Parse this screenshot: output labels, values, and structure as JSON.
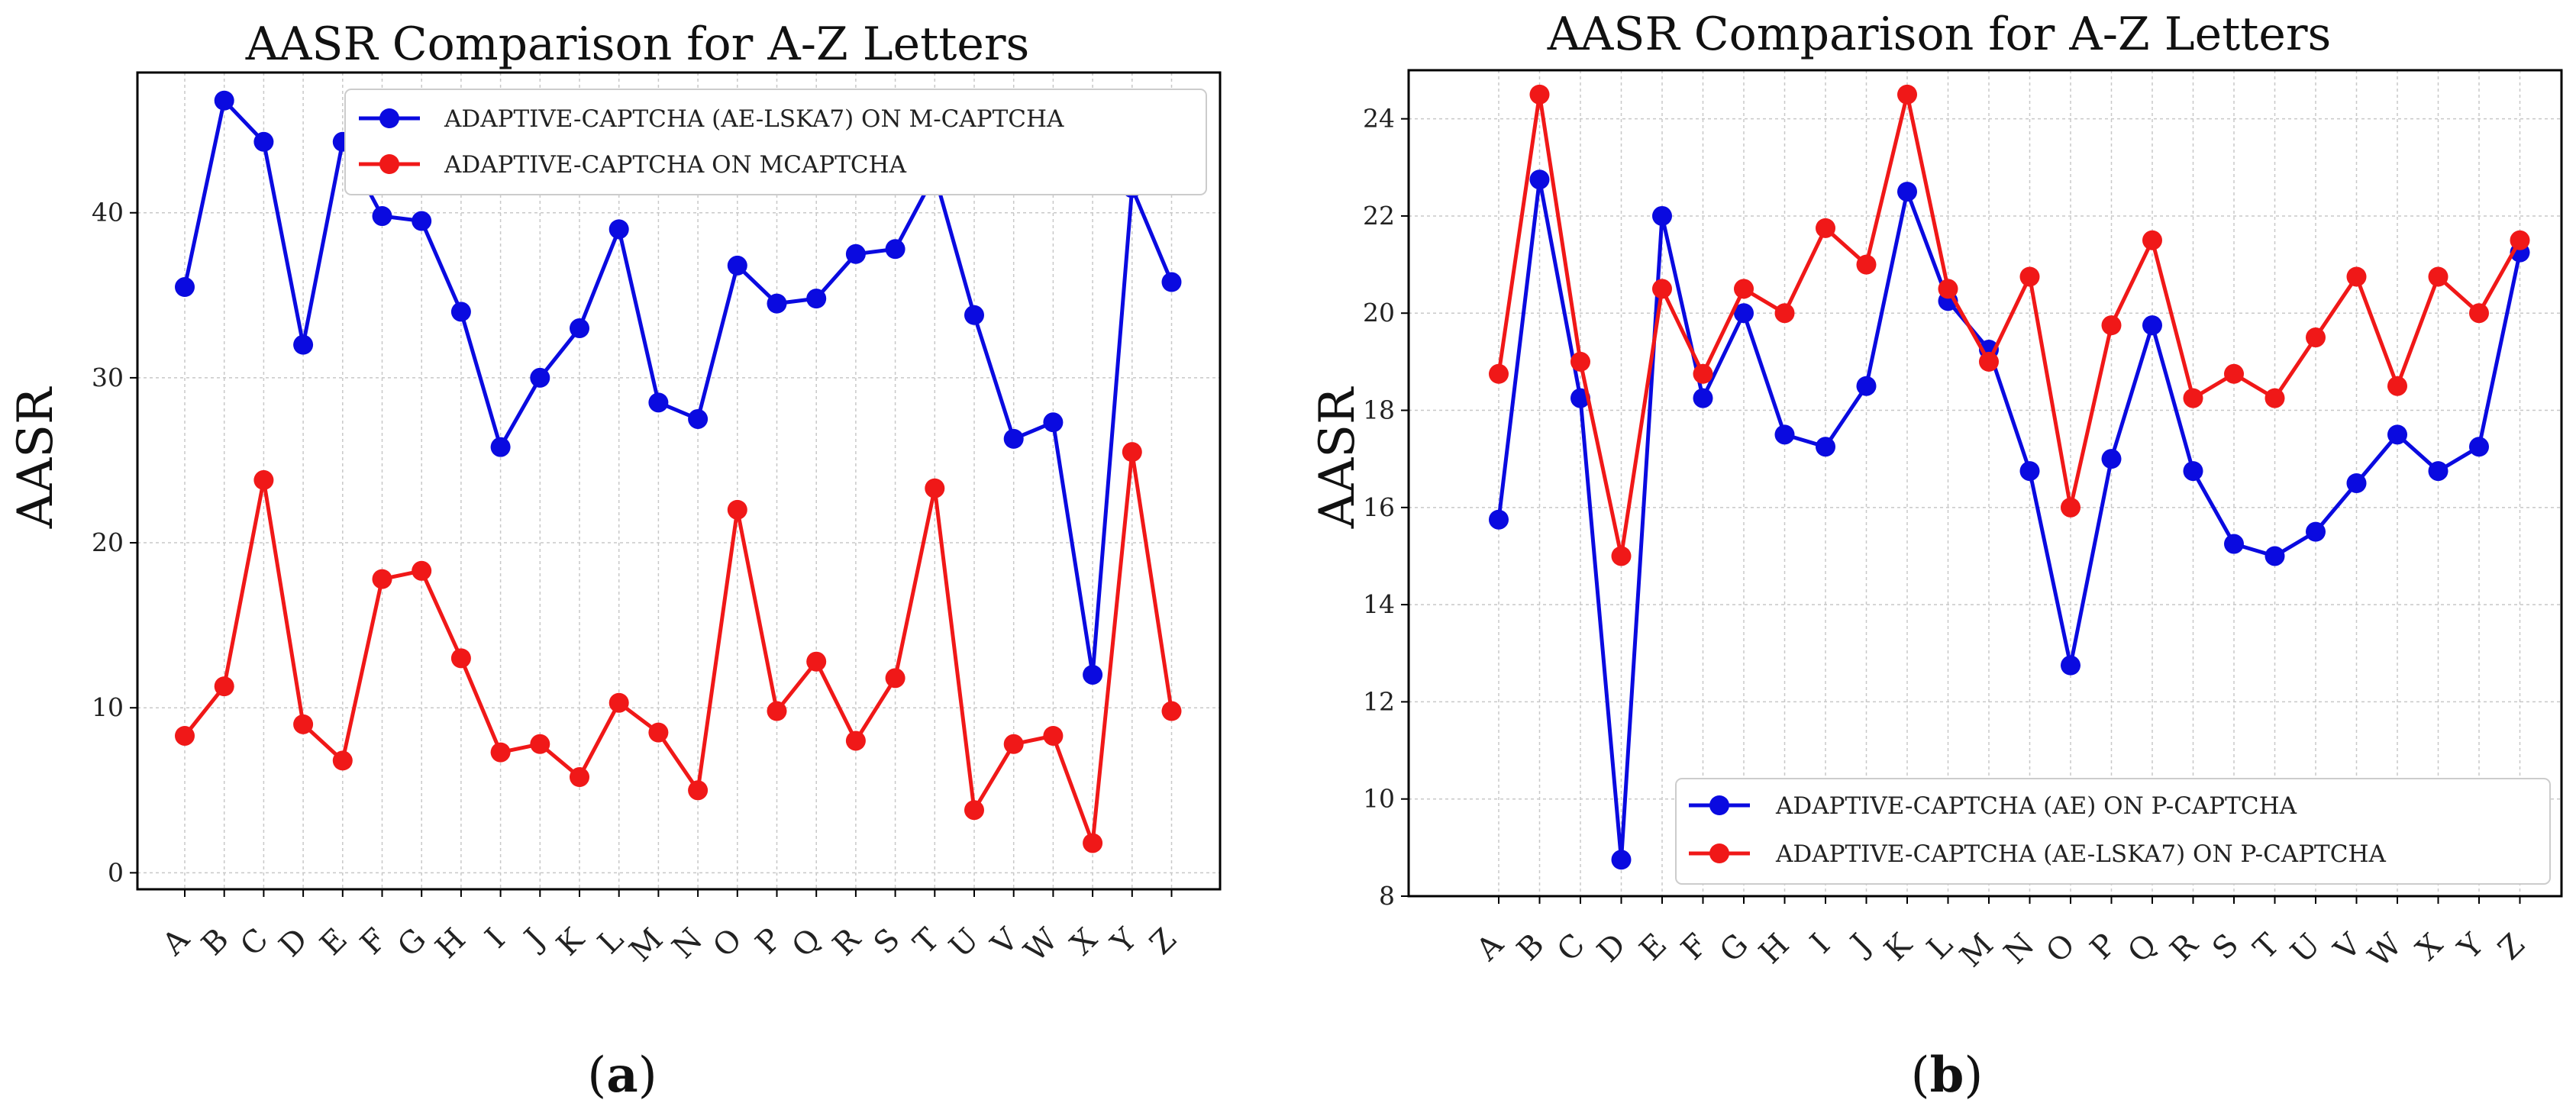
{
  "chart_data": [
    {
      "type": "line",
      "title": "AASR Comparison for A-Z Letters",
      "xlabel": "",
      "ylabel": "AASR",
      "categories": [
        "A",
        "B",
        "C",
        "D",
        "E",
        "F",
        "G",
        "H",
        "I",
        "J",
        "K",
        "L",
        "M",
        "N",
        "O",
        "P",
        "Q",
        "R",
        "S",
        "T",
        "U",
        "V",
        "W",
        "X",
        "Y",
        "Z"
      ],
      "ylim": [
        -1,
        48.5
      ],
      "yticks": [
        0,
        10,
        20,
        30,
        40
      ],
      "grid": true,
      "legend_position": "top-right",
      "caption": {
        "open": "(",
        "letter": "a",
        "close": ")"
      },
      "series": [
        {
          "name": "ADAPTIVE-CAPTCHA (AE-LSKA7) ON M-CAPTCHA",
          "color": "#0a0ae0",
          "values": [
            35.5,
            46.8,
            44.3,
            32.0,
            44.3,
            39.8,
            39.5,
            34.0,
            25.8,
            30.0,
            33.0,
            39.0,
            28.5,
            27.5,
            36.8,
            34.5,
            34.8,
            37.5,
            37.8,
            42.3,
            33.8,
            26.3,
            27.3,
            12.0,
            41.5,
            35.8
          ]
        },
        {
          "name": "ADAPTIVE-CAPTCHA ON MCAPTCHA",
          "color": "#f01818",
          "values": [
            8.3,
            11.3,
            23.8,
            9.0,
            6.8,
            17.8,
            18.3,
            13.0,
            7.3,
            7.8,
            5.8,
            10.3,
            8.5,
            5.0,
            22.0,
            9.8,
            12.8,
            8.0,
            11.8,
            23.3,
            3.8,
            7.8,
            8.3,
            1.8,
            25.5,
            9.8
          ]
        }
      ]
    },
    {
      "type": "line",
      "title": "AASR Comparison for A-Z Letters",
      "xlabel": "",
      "ylabel": "AASR",
      "categories": [
        "A",
        "B",
        "C",
        "D",
        "E",
        "F",
        "G",
        "H",
        "I",
        "J",
        "K",
        "L",
        "M",
        "N",
        "O",
        "P",
        "Q",
        "R",
        "S",
        "T",
        "U",
        "V",
        "W",
        "X",
        "Y",
        "Z"
      ],
      "ylim": [
        8,
        25
      ],
      "yticks": [
        8,
        10,
        12,
        14,
        16,
        18,
        20,
        22,
        24
      ],
      "grid": true,
      "legend_position": "lower-right",
      "caption": {
        "open": "(",
        "letter": "b",
        "close": ")"
      },
      "series": [
        {
          "name": "ADAPTIVE-CAPTCHA (AE) ON P-CAPTCHA",
          "color": "#0a0ae0",
          "values": [
            15.75,
            22.75,
            18.25,
            8.75,
            22.0,
            18.25,
            20.0,
            17.5,
            17.25,
            18.5,
            22.5,
            20.25,
            19.25,
            16.75,
            12.75,
            17.0,
            19.75,
            16.75,
            15.25,
            15.0,
            15.5,
            16.5,
            17.5,
            16.75,
            17.25,
            21.25
          ]
        },
        {
          "name": "ADAPTIVE-CAPTCHA (AE-LSKA7) ON P-CAPTCHA",
          "color": "#f01818",
          "values": [
            18.75,
            24.5,
            19.0,
            15.0,
            20.5,
            18.75,
            20.5,
            20.0,
            21.75,
            21.0,
            24.5,
            20.5,
            19.0,
            20.75,
            16.0,
            19.75,
            21.5,
            18.25,
            18.75,
            18.25,
            19.5,
            20.75,
            18.5,
            20.75,
            20.0,
            21.5
          ]
        }
      ]
    }
  ]
}
